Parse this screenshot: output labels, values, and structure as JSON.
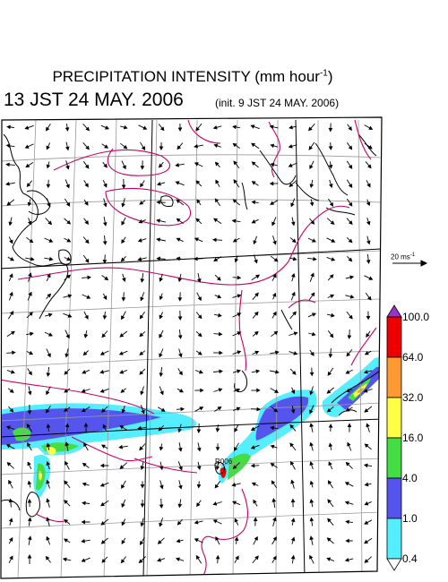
{
  "header": {
    "title_text": "PRECIPITATION INTENSITY (mm hour",
    "title_exp": "-1",
    "title_close": ")",
    "valid_time": "13 JST 24 MAY. 2006",
    "init_time": "(init. 9 JST 24 MAY. 2006)"
  },
  "wind_scale": {
    "label": "20 ms",
    "exp": "-1"
  },
  "map": {
    "station_label": "R006",
    "colors": {
      "land": "#000000",
      "grid": "#9a9a9a",
      "contour": "#cc0066",
      "frame": "#000000"
    }
  },
  "colorbar": {
    "levels": [
      "100.0",
      "64.0",
      "32.0",
      "16.0",
      "4.0",
      "1.0",
      "0.4"
    ],
    "colors": [
      "#ee0000",
      "#ff9933",
      "#ffff44",
      "#44dd44",
      "#5555ee",
      "#55eeff"
    ],
    "top_arrow_color": "#9933cc"
  }
}
